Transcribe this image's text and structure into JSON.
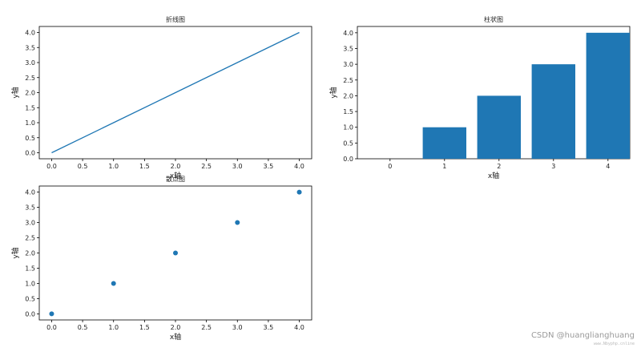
{
  "colors": {
    "series": "#1f77b4",
    "axes": "#000000",
    "text": "#222222"
  },
  "chart_data": [
    {
      "id": "line",
      "type": "line",
      "title": "折线图",
      "xlabel": "x轴",
      "ylabel": "y轴",
      "x": [
        0,
        1,
        2,
        3,
        4
      ],
      "y": [
        0,
        1,
        2,
        3,
        4
      ],
      "xlim": [
        -0.2,
        4.2
      ],
      "ylim": [
        -0.2,
        4.2
      ],
      "xticks": [
        0.0,
        0.5,
        1.0,
        1.5,
        2.0,
        2.5,
        3.0,
        3.5,
        4.0
      ],
      "yticks": [
        0.0,
        0.5,
        1.0,
        1.5,
        2.0,
        2.5,
        3.0,
        3.5,
        4.0
      ],
      "grid": false
    },
    {
      "id": "bar",
      "type": "bar",
      "title": "柱状图",
      "xlabel": "x轴",
      "ylabel": "y轴",
      "categories": [
        0,
        1,
        2,
        3,
        4
      ],
      "values": [
        0,
        1,
        2,
        3,
        4
      ],
      "xlim": [
        -0.6,
        4.4
      ],
      "ylim": [
        0,
        4.2
      ],
      "xticks": [
        0,
        1,
        2,
        3,
        4
      ],
      "yticks": [
        0.0,
        0.5,
        1.0,
        1.5,
        2.0,
        2.5,
        3.0,
        3.5,
        4.0
      ],
      "grid": false
    },
    {
      "id": "scatter",
      "type": "scatter",
      "title": "散点图",
      "xlabel": "x轴",
      "ylabel": "y轴",
      "x": [
        0,
        1,
        2,
        3,
        4
      ],
      "y": [
        0,
        1,
        2,
        3,
        4
      ],
      "xlim": [
        -0.2,
        4.2
      ],
      "ylim": [
        -0.2,
        4.2
      ],
      "xticks": [
        0.0,
        0.5,
        1.0,
        1.5,
        2.0,
        2.5,
        3.0,
        3.5,
        4.0
      ],
      "yticks": [
        0.0,
        0.5,
        1.0,
        1.5,
        2.0,
        2.5,
        3.0,
        3.5,
        4.0
      ],
      "grid": false
    }
  ],
  "watermark": {
    "main": "CSDN @huanglianghuang",
    "small": "www.Nbyphp.cnline"
  }
}
